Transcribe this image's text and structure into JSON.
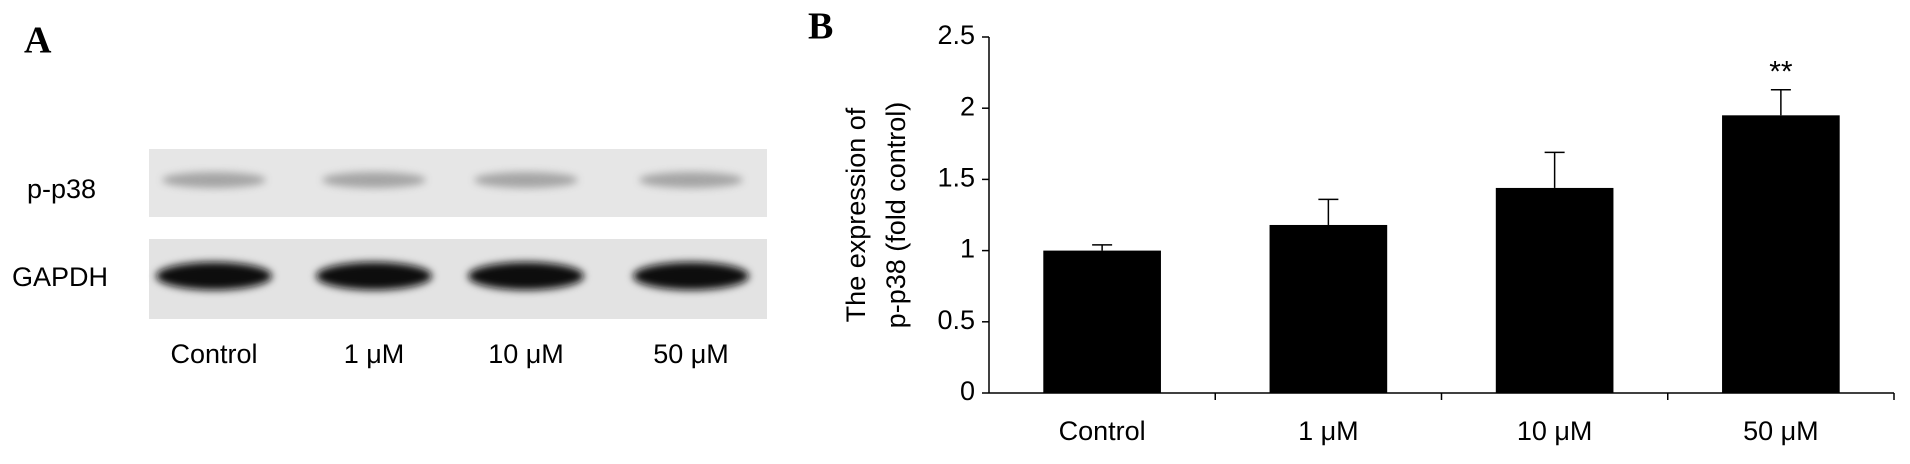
{
  "panel_a": {
    "label": "A",
    "rows": [
      "p-p38",
      "GAPDH"
    ],
    "lanes": [
      "Control",
      "1 μM",
      "10 μM",
      "50 μM"
    ]
  },
  "chart_data": {
    "type": "bar",
    "panel_label": "B",
    "y_label": [
      "The expression of",
      "p-p38 (fold control)"
    ],
    "categories": [
      "Control",
      "1 μM",
      "10 μM",
      "50 μM"
    ],
    "values": [
      1.0,
      1.18,
      1.44,
      1.95
    ],
    "errors": [
      0.04,
      0.18,
      0.25,
      0.18
    ],
    "color": "#000000",
    "ylim": [
      0,
      2.5
    ],
    "yticks": [
      0,
      0.5,
      1,
      1.5,
      2,
      2.5
    ],
    "annotations": [
      {
        "category": 3,
        "text": "**"
      }
    ]
  }
}
